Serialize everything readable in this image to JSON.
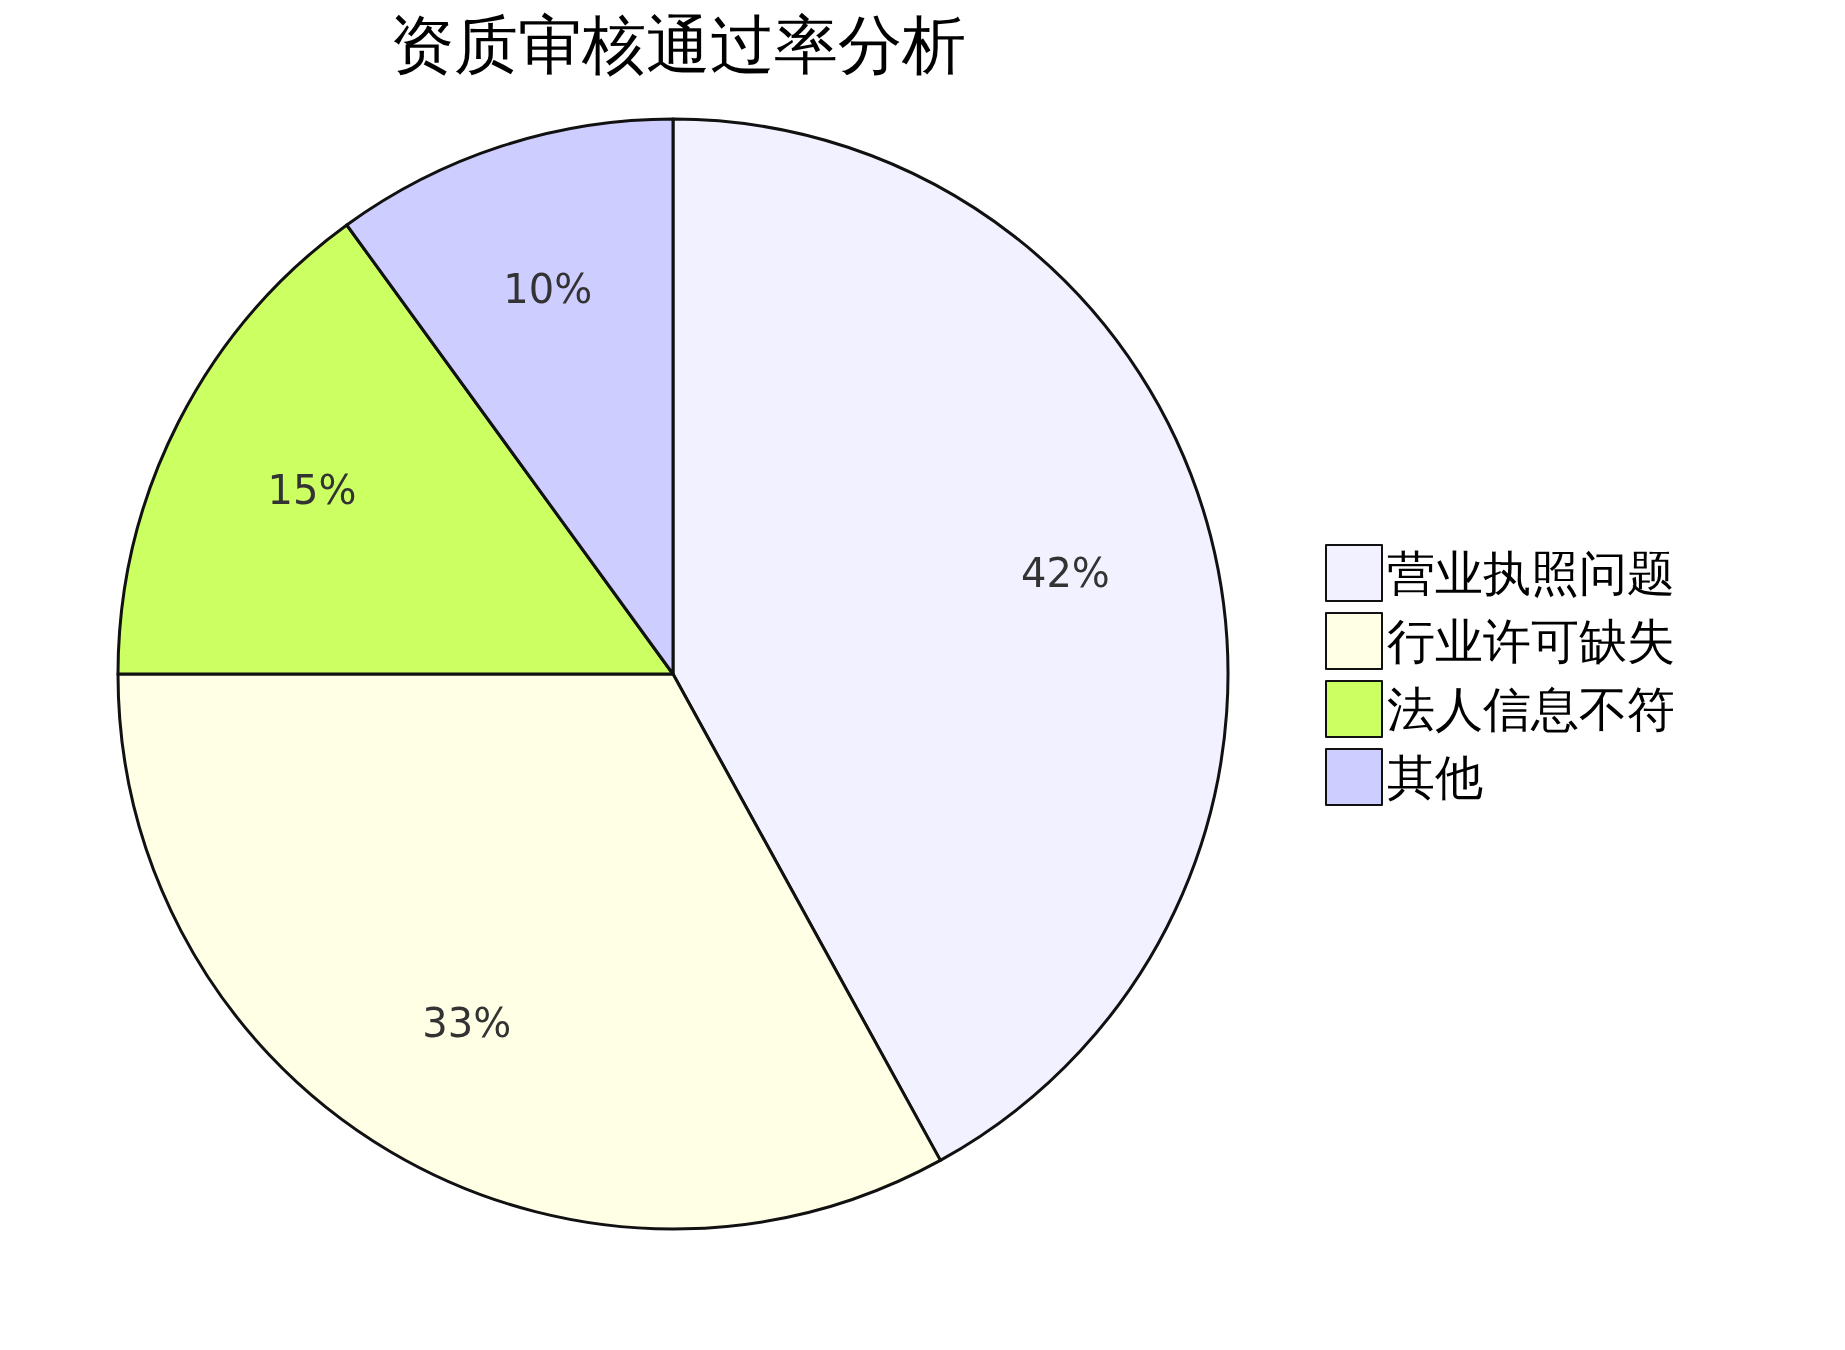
{
  "chart_data": {
    "type": "pie",
    "title": "资质审核通过率分析",
    "categories": [
      "营业执照问题",
      "行业许可缺失",
      "法人信息不符",
      "其他"
    ],
    "values": [
      42,
      33,
      15,
      10
    ],
    "colors": [
      "#f1f1ff",
      "#ffffe6",
      "#ccff62",
      "#cdcdff"
    ],
    "value_labels": [
      "42%",
      "33%",
      "15%",
      "10%"
    ],
    "legend": "right"
  }
}
